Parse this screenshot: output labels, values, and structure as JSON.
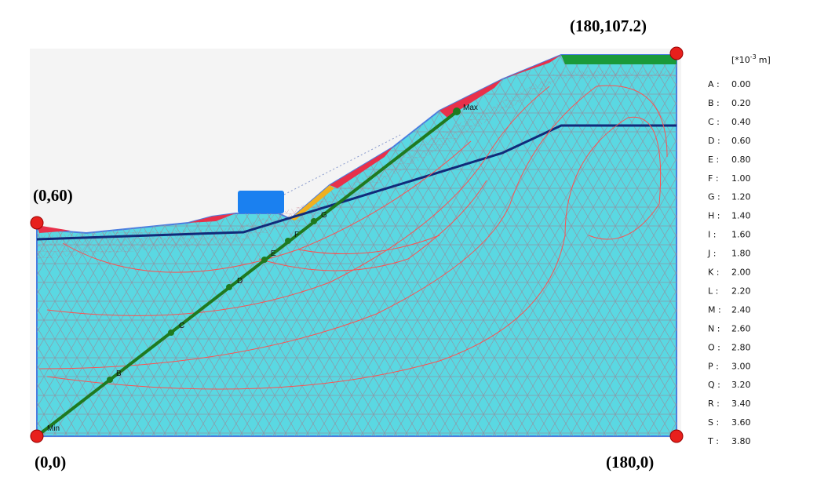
{
  "corners": {
    "top_right": "(180,107.2)",
    "left_top": "(0,60)",
    "origin": "(0,0)",
    "bottom_right": "(180,0)"
  },
  "section_points": {
    "min": "Min",
    "b": "B",
    "c": "C",
    "d": "D",
    "e": "E",
    "f": "F",
    "g": "G",
    "max": "Max"
  },
  "legend": {
    "unit": {
      "prefix": "[*10",
      "exponent": "-3",
      "suffix": "m]"
    },
    "items": [
      {
        "label": "A :",
        "value": "0.00"
      },
      {
        "label": "B :",
        "value": "0.20"
      },
      {
        "label": "C :",
        "value": "0.40"
      },
      {
        "label": "D :",
        "value": "0.60"
      },
      {
        "label": "E :",
        "value": "0.80"
      },
      {
        "label": "F :",
        "value": "1.00"
      },
      {
        "label": "G :",
        "value": "1.20"
      },
      {
        "label": "H :",
        "value": "1.40"
      },
      {
        "label": "I :",
        "value": "1.60"
      },
      {
        "label": "J :",
        "value": "1.80"
      },
      {
        "label": "K :",
        "value": "2.00"
      },
      {
        "label": "L :",
        "value": "2.20"
      },
      {
        "label": "M :",
        "value": "2.40"
      },
      {
        "label": "N :",
        "value": "2.60"
      },
      {
        "label": "O :",
        "value": "2.80"
      },
      {
        "label": "P :",
        "value": "3.00"
      },
      {
        "label": "Q :",
        "value": "3.20"
      },
      {
        "label": "R :",
        "value": "3.40"
      },
      {
        "label": "S :",
        "value": "3.60"
      },
      {
        "label": "T :",
        "value": "3.80"
      }
    ]
  }
}
